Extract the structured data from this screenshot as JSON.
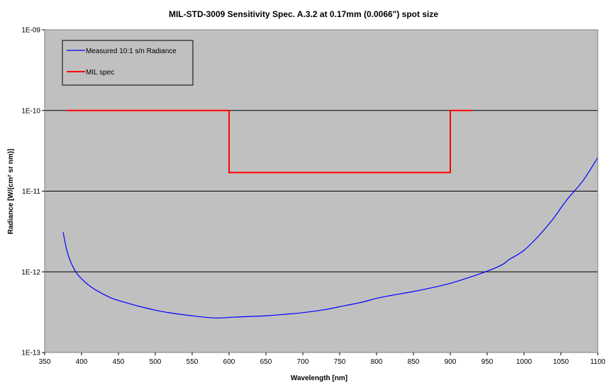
{
  "chart_data": {
    "type": "line",
    "title": "MIL-STD-3009 Sensitivity Spec. A.3.2 at 0.17mm (0.0066\") spot size",
    "xlabel": "Wavelength [nm]",
    "ylabel": "Radiance [W/(cm² sr nm)]",
    "xlim": [
      350,
      1100
    ],
    "ylim": [
      1e-13,
      1e-09
    ],
    "yscale": "log",
    "x_ticks": [
      350,
      400,
      450,
      500,
      550,
      600,
      650,
      700,
      750,
      800,
      850,
      900,
      950,
      1000,
      1050,
      1100
    ],
    "x_tick_labels": [
      "350",
      "400",
      "450",
      "500",
      "550",
      "600",
      "650",
      "700",
      "750",
      "800",
      "850",
      "900",
      "950",
      "1000",
      "1050",
      "1100"
    ],
    "y_ticks": [
      1e-13,
      1e-12,
      1e-11,
      1e-10,
      1e-09
    ],
    "y_tick_labels": [
      "1E-13",
      "1E-12",
      "1E-11",
      "1E-10",
      "1E-09"
    ],
    "grid": "horizontal",
    "legend_position": "top-left",
    "plot_background": "#c0c0c0",
    "series": [
      {
        "name": "Measured 10:1 s/n Radiance",
        "color": "#0000ff",
        "x": [
          375,
          380,
          385,
          390,
          395,
          400,
          410,
          420,
          440,
          460,
          480,
          500,
          520,
          550,
          580,
          600,
          620,
          650,
          680,
          700,
          730,
          750,
          780,
          800,
          820,
          850,
          880,
          900,
          920,
          950,
          970,
          980,
          1000,
          1020,
          1040,
          1050,
          1060,
          1080,
          1100
        ],
        "y": [
          3.1e-12,
          1.85e-12,
          1.35e-12,
          1.08e-12,
          9.2e-13,
          8.2e-13,
          6.8e-13,
          5.9e-13,
          4.75e-13,
          4.15e-13,
          3.7e-13,
          3.35e-13,
          3.1e-13,
          2.85e-13,
          2.68e-13,
          2.72e-13,
          2.78e-13,
          2.85e-13,
          3e-13,
          3.12e-13,
          3.4e-13,
          3.7e-13,
          4.2e-13,
          4.7e-13,
          5.1e-13,
          5.7e-13,
          6.5e-13,
          7.2e-13,
          8.2e-13,
          1.02e-12,
          1.22e-12,
          1.42e-12,
          1.85e-12,
          2.8e-12,
          4.6e-12,
          6.2e-12,
          8.2e-12,
          1.35e-11,
          2.6e-11
        ]
      },
      {
        "name": "MIL spec",
        "color": "#ff0000",
        "x": [
          380,
          600,
          600,
          900,
          900,
          930
        ],
        "y": [
          1e-10,
          1e-10,
          1.7e-11,
          1.7e-11,
          1e-10,
          1e-10
        ]
      }
    ]
  }
}
